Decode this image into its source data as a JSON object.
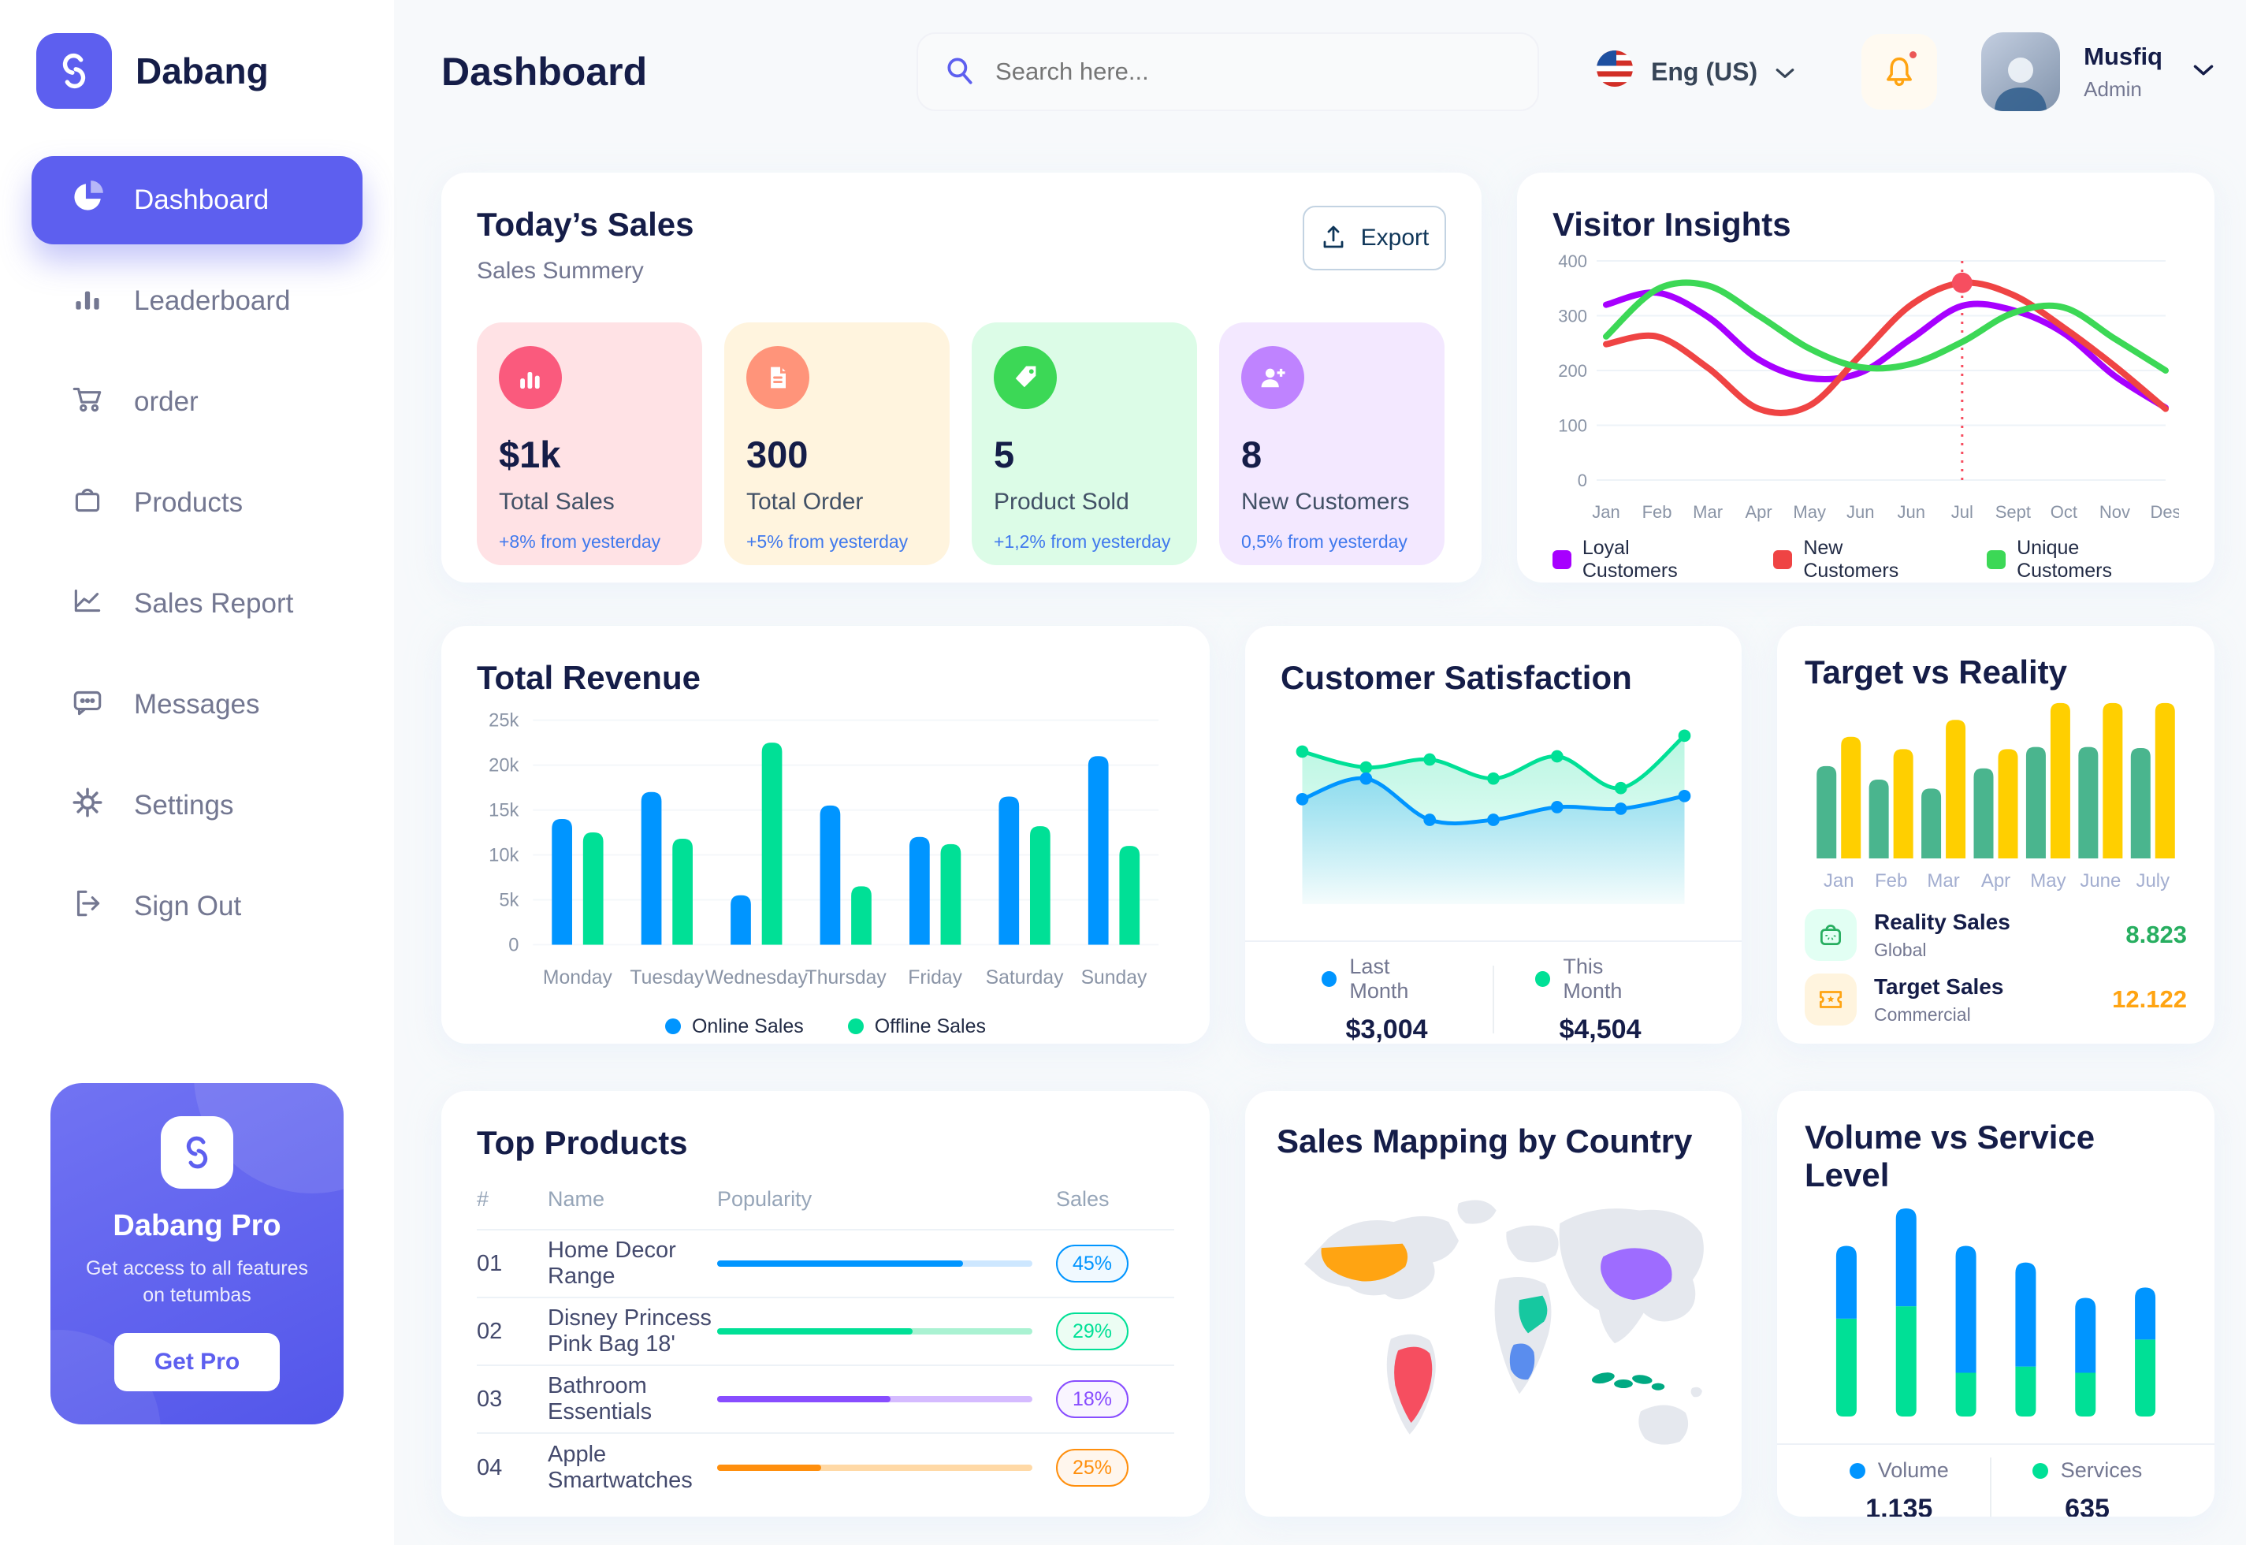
{
  "colors": {
    "accent": "#5D5FEF",
    "title": "#151D48",
    "muted": "#737791",
    "delta_blue": "#4079ED",
    "bell": "#FFA412",
    "bell_dot": "#EB5757",
    "grid": "#EEF3F8",
    "tick": "#8A94A6"
  },
  "sidebar": {
    "brand": "Dabang",
    "items": [
      {
        "label": "Dashboard",
        "active": true
      },
      {
        "label": "Leaderboard",
        "active": false
      },
      {
        "label": "order",
        "active": false
      },
      {
        "label": "Products",
        "active": false
      },
      {
        "label": "Sales Report",
        "active": false
      },
      {
        "label": "Messages",
        "active": false
      },
      {
        "label": "Settings",
        "active": false
      },
      {
        "label": "Sign Out",
        "active": false
      }
    ],
    "pro": {
      "title": "Dabang Pro",
      "subtitle": "Get access to all features on tetumbas",
      "button": "Get Pro"
    }
  },
  "header": {
    "title": "Dashboard",
    "search_placeholder": "Search here...",
    "language": "Eng (US)",
    "user": {
      "name": "Musfiq",
      "role": "Admin"
    }
  },
  "todays_sales": {
    "title": "Today’s Sales",
    "subtitle": "Sales Summery",
    "export_label": "Export",
    "delta_color": "#4079ED",
    "cards": [
      {
        "value": "$1k",
        "label": "Total Sales",
        "delta": "+8% from yesterday",
        "bg": "#FFE2E5",
        "icon_bg": "#FA5A7D",
        "icon": "bar-chart-icon"
      },
      {
        "value": "300",
        "label": "Total Order",
        "delta": "+5% from yesterday",
        "bg": "#FFF4DE",
        "icon_bg": "#FF947A",
        "icon": "order-file-icon"
      },
      {
        "value": "5",
        "label": "Product Sold",
        "delta": "+1,2% from yesterday",
        "bg": "#DCFCE7",
        "icon_bg": "#3CD856",
        "icon": "tag-icon"
      },
      {
        "value": "8",
        "label": "New Customers",
        "delta": "0,5% from yesterday",
        "bg": "#F3E8FF",
        "icon_bg": "#BF83FF",
        "icon": "user-plus-icon"
      }
    ]
  },
  "top_products": {
    "title": "Top Products",
    "headers": [
      "#",
      "Name",
      "Popularity",
      "Sales"
    ],
    "rows": [
      {
        "num": "01",
        "name": "Home Decor Range",
        "popularity": 78,
        "sales": "45%",
        "color": "#0095FF",
        "track": "#CDE7FF",
        "badge_bg": "#F0F9FF"
      },
      {
        "num": "02",
        "name": "Disney Princess Pink Bag 18'",
        "popularity": 62,
        "sales": "29%",
        "color": "#00E096",
        "track": "#AAF2D2",
        "badge_bg": "#ECFDF3"
      },
      {
        "num": "03",
        "name": "Bathroom Essentials",
        "popularity": 55,
        "sales": "18%",
        "color": "#884DFF",
        "track": "#D5BBFF",
        "badge_bg": "#F9F5FF"
      },
      {
        "num": "04",
        "name": "Apple Smartwatches",
        "popularity": 33,
        "sales": "25%",
        "color": "#FF8F0D",
        "track": "#FFD9A6",
        "badge_bg": "#FFF6ED"
      }
    ]
  },
  "sales_map": {
    "title": "Sales Mapping by Country",
    "land_color": "#E5E8EE",
    "countries": [
      {
        "name": "United States",
        "color": "#FFA412"
      },
      {
        "name": "Brazil",
        "color": "#F64E60"
      },
      {
        "name": "Saudi Arabia",
        "color": "#16C8A0"
      },
      {
        "name": "DR Congo",
        "color": "#5A8DEE"
      },
      {
        "name": "China",
        "color": "#9E6CFF"
      },
      {
        "name": "Indonesia",
        "color": "#00A982"
      }
    ]
  },
  "chart_data": [
    {
      "id": "visitor_insights",
      "type": "line",
      "title": "Visitor Insights",
      "x": [
        "Jan",
        "Feb",
        "Mar",
        "Apr",
        "May",
        "Jun",
        "Jun",
        "Jul",
        "Sept",
        "Oct",
        "Nov",
        "Des"
      ],
      "ylim": [
        0,
        400
      ],
      "yticks": [
        0,
        100,
        200,
        300,
        400
      ],
      "grid": true,
      "legend_position": "bottom",
      "series": [
        {
          "name": "Loyal Customers",
          "color": "#A700FF",
          "values": [
            320,
            342,
            298,
            220,
            186,
            196,
            258,
            318,
            310,
            268,
            190,
            132
          ]
        },
        {
          "name": "New Customers",
          "color": "#EF4444",
          "values": [
            248,
            262,
            205,
            130,
            136,
            228,
            320,
            360,
            338,
            278,
            208,
            130
          ]
        },
        {
          "name": "Unique Customers",
          "color": "#3CD856",
          "values": [
            262,
            348,
            355,
            300,
            240,
            206,
            212,
            252,
            305,
            315,
            258,
            200
          ]
        }
      ],
      "highlight": {
        "month_index": 7,
        "series": "New Customers",
        "value": 360,
        "color": "#F64E60"
      }
    },
    {
      "id": "total_revenue",
      "type": "bar",
      "title": "Total Revenue",
      "categories": [
        "Monday",
        "Tuesday",
        "Wednesday",
        "Thursday",
        "Friday",
        "Saturday",
        "Sunday"
      ],
      "ylim": [
        0,
        25000
      ],
      "yticks": [
        0,
        5000,
        10000,
        15000,
        20000,
        25000
      ],
      "ytick_labels": [
        "0",
        "5k",
        "10k",
        "15k",
        "20k",
        "25k"
      ],
      "grid": true,
      "legend_position": "bottom",
      "series": [
        {
          "name": "Online Sales",
          "color": "#0095FF",
          "values": [
            14000,
            17000,
            5500,
            15500,
            12000,
            16500,
            21000
          ]
        },
        {
          "name": "Offline Sales",
          "color": "#00E096",
          "values": [
            12500,
            11800,
            22500,
            6500,
            11200,
            13200,
            11000
          ]
        }
      ]
    },
    {
      "id": "customer_satisfaction",
      "type": "area",
      "title": "Customer Satisfaction",
      "x": [
        1,
        2,
        3,
        4,
        5,
        6,
        7
      ],
      "ylim": [
        0,
        100
      ],
      "grid": false,
      "legend_position": "bottom",
      "series": [
        {
          "name": "Last Month",
          "color": "#0095FF",
          "total": "$3,004",
          "values": [
            55,
            68,
            42,
            42,
            50,
            49,
            57
          ]
        },
        {
          "name": "This Month",
          "color": "#00E096",
          "total": "$4,504",
          "values": [
            85,
            75,
            80,
            68,
            82,
            62,
            95
          ]
        }
      ]
    },
    {
      "id": "target_vs_reality",
      "type": "bar",
      "title": "Target vs Reality",
      "categories": [
        "Jan",
        "Feb",
        "Mar",
        "Apr",
        "May",
        "June",
        "July"
      ],
      "ylim": [
        0,
        14
      ],
      "grid": false,
      "legend_position": "bottom",
      "series": [
        {
          "name": "Reality Sales",
          "color": "#4AB58E",
          "values": [
            8.2,
            7.0,
            6.2,
            8.0,
            9.9,
            9.9,
            9.8
          ]
        },
        {
          "name": "Target Sales",
          "color": "#FFCF00",
          "values": [
            10.8,
            9.7,
            12.3,
            9.7,
            13.8,
            13.8,
            13.8
          ]
        }
      ],
      "legend": [
        {
          "label": "Reality Sales",
          "sub": "Global",
          "value": "8.823",
          "value_color": "#27AE60",
          "icon_bg": "#E2FFF3",
          "icon": "bag-icon"
        },
        {
          "label": "Target Sales",
          "sub": "Commercial",
          "value": "12.122",
          "value_color": "#FFA412",
          "icon_bg": "#FFF4DE",
          "icon": "ticket-icon"
        }
      ]
    },
    {
      "id": "volume_service",
      "type": "bar",
      "stacked": true,
      "title": "Volume vs Service Level",
      "categories": [
        "1",
        "2",
        "3",
        "4",
        "5",
        "6"
      ],
      "ylim": [
        0,
        100
      ],
      "grid": false,
      "legend_position": "bottom",
      "series": [
        {
          "name": "Volume",
          "color": "#0095FF",
          "total": "1,135",
          "values": [
            35,
            47,
            61,
            50,
            36,
            25
          ]
        },
        {
          "name": "Services",
          "color": "#00E096",
          "total": "635",
          "values": [
            47,
            53,
            21,
            24,
            21,
            37
          ]
        }
      ]
    }
  ]
}
